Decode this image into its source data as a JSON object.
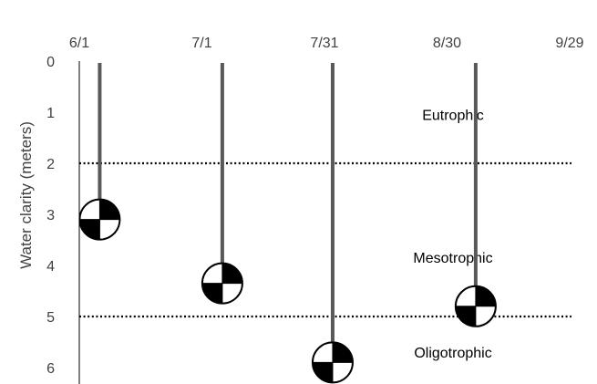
{
  "chart_data": {
    "type": "scatter",
    "title": "",
    "xlabel": "",
    "ylabel": "Water clarity (meters)",
    "x_axis_position": "top",
    "y_axis_inverted": true,
    "x_ticks": [
      "6/1",
      "7/1",
      "7/31",
      "8/30",
      "9/29"
    ],
    "y_ticks": [
      "0",
      "1",
      "2",
      "3",
      "4",
      "5",
      "6"
    ],
    "ylim": [
      0,
      6
    ],
    "xlim": [
      "6/1",
      "9/29"
    ],
    "grid": false,
    "marker": "secchi-disk",
    "points": [
      {
        "x": "6/6",
        "y": 3.1
      },
      {
        "x": "7/6",
        "y": 4.35
      },
      {
        "x": "8/2",
        "y": 5.9
      },
      {
        "x": "9/6",
        "y": 4.8
      }
    ],
    "thresholds": [
      {
        "y": 2,
        "style": "dotted"
      },
      {
        "y": 5,
        "style": "dotted"
      }
    ],
    "zones": [
      {
        "label": "Eutrophic",
        "y": 1.15
      },
      {
        "label": "Mesotrophic",
        "y": 3.95
      },
      {
        "label": "Oligotrophic",
        "y": 5.8
      }
    ],
    "colors": {
      "stem": "#595959",
      "threshold": "#000000",
      "text": "#404040"
    }
  }
}
